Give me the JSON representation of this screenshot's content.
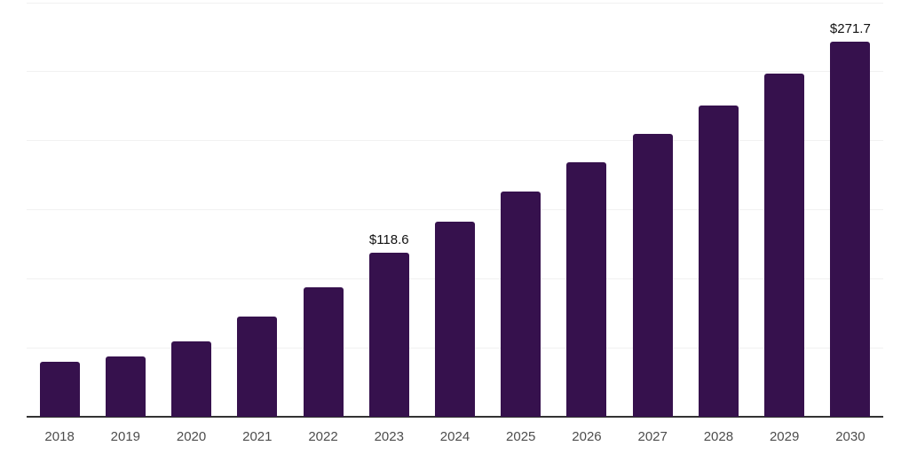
{
  "chart_data": {
    "type": "bar",
    "title": "",
    "xlabel": "",
    "ylabel": "",
    "categories": [
      "2018",
      "2019",
      "2020",
      "2021",
      "2022",
      "2023",
      "2024",
      "2025",
      "2026",
      "2027",
      "2028",
      "2029",
      "2030"
    ],
    "values": [
      40.0,
      43.8,
      54.7,
      72.7,
      93.9,
      118.6,
      141.0,
      163.0,
      184.4,
      204.5,
      225.3,
      248.6,
      271.7
    ],
    "value_prefix": "$",
    "annotations": [
      {
        "category": "2023",
        "text": "$118.6"
      },
      {
        "category": "2030",
        "text": "$271.7"
      }
    ],
    "ylim": [
      0,
      300
    ],
    "grid_step": 50,
    "grid": "horizontal-only",
    "legend": "none",
    "y_axis_labels_visible": false,
    "colors": {
      "bar": "#36114D",
      "axis_line": "#333333",
      "gridline": "#f1f1f1",
      "tick_label": "#4d4d4d",
      "data_label": "#111111",
      "background": "#ffffff"
    }
  }
}
